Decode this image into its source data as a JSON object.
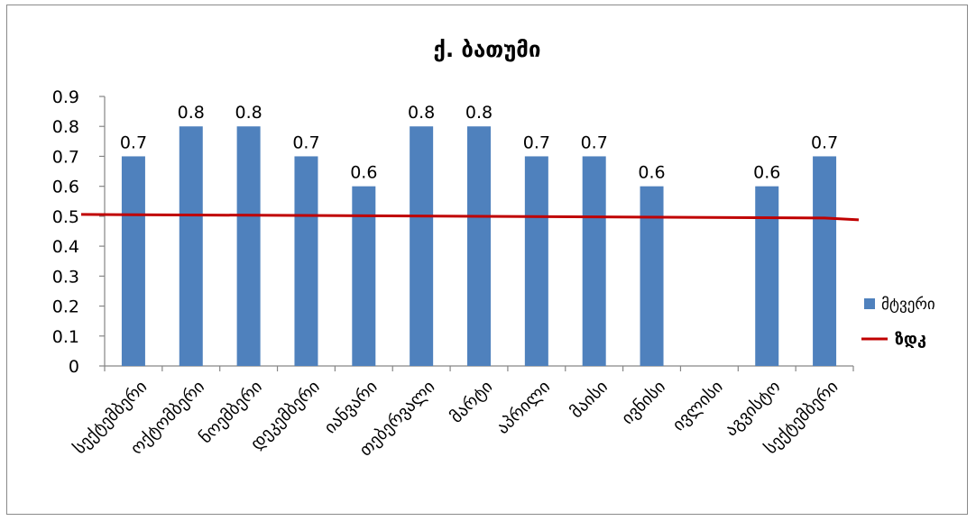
{
  "chart_data": {
    "type": "bar",
    "title": "ქ. ბათუმი",
    "categories": [
      "სექტემბერი",
      "ოქტომბერი",
      "ნოემბერი",
      "დეკემბერი",
      "იანვარი",
      "თებერვალი",
      "მარტი",
      "აპრილი",
      "მაისი",
      "ივნისი",
      "ივლისი",
      "აგვისტო",
      "სექტემბერი"
    ],
    "series": [
      {
        "name": "მტვერი",
        "type": "bar",
        "color": "#4f81bd",
        "values": [
          0.7,
          0.8,
          0.8,
          0.7,
          0.6,
          0.8,
          0.8,
          0.7,
          0.7,
          0.6,
          null,
          0.6,
          0.7
        ],
        "labels": [
          "0.7",
          "0.8",
          "0.8",
          "0.7",
          "0.6",
          "0.8",
          "0.8",
          "0.7",
          "0.7",
          "0.6",
          "",
          "0.6",
          "0.7"
        ]
      },
      {
        "name": "ზდკ",
        "type": "line",
        "color": "#c00000",
        "values": [
          0.5,
          0.5,
          0.5,
          0.5,
          0.5,
          0.5,
          0.5,
          0.5,
          0.5,
          0.5,
          0.5,
          0.5,
          0.5
        ]
      }
    ],
    "yticks": [
      "0",
      "0.1",
      "0.2",
      "0.3",
      "0.4",
      "0.5",
      "0.6",
      "0.7",
      "0.8",
      "0.9"
    ],
    "ylim": [
      0,
      0.9
    ],
    "xlabel": "",
    "ylabel": "",
    "grid": false,
    "legend": "right"
  }
}
